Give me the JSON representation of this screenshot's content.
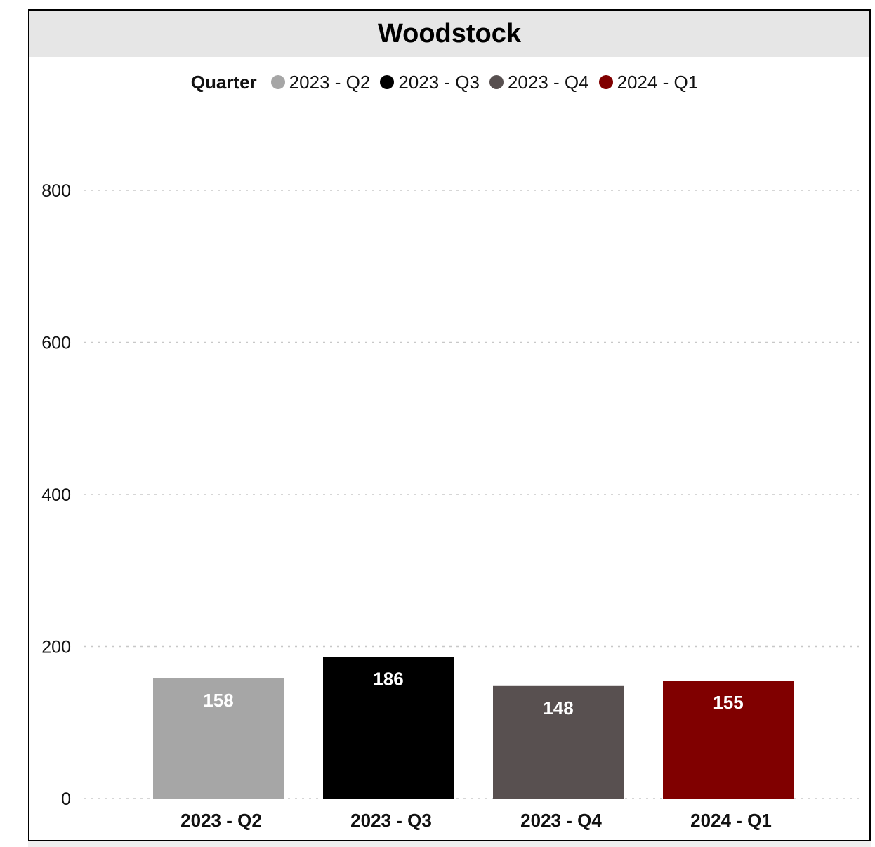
{
  "chart_data": {
    "type": "bar",
    "title": "Woodstock",
    "legend_title": "Quarter",
    "legend_placement": "top",
    "categories": [
      "2023 - Q2",
      "2023 - Q3",
      "2023 - Q4",
      "2024 - Q1"
    ],
    "values": [
      158,
      186,
      148,
      155
    ],
    "value_labels": [
      "158",
      "186",
      "148",
      "155"
    ],
    "colors": [
      "#a6a6a6",
      "#000000",
      "#585050",
      "#800000"
    ],
    "yticks": [
      0,
      200,
      400,
      600,
      800
    ],
    "ytick_labels": [
      "0",
      "200",
      "400",
      "600",
      "800"
    ],
    "ylim": [
      0,
      800
    ],
    "grid": true,
    "xlabel": "",
    "ylabel": ""
  }
}
